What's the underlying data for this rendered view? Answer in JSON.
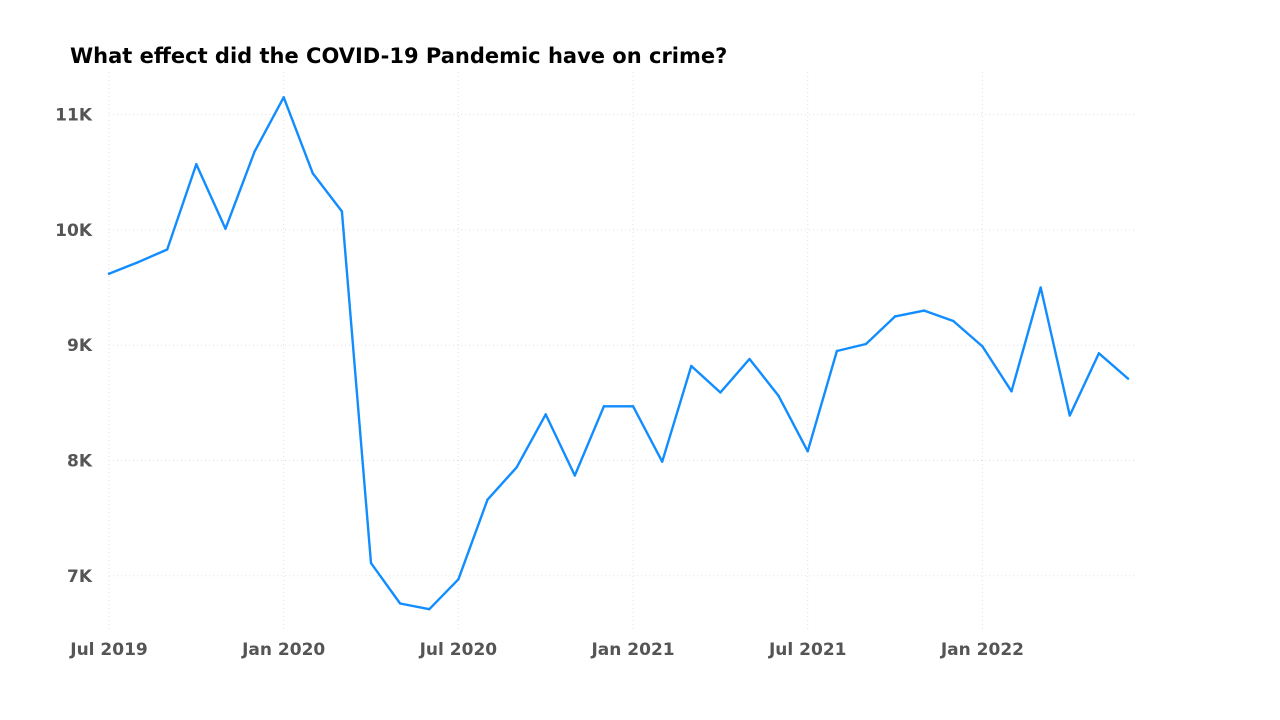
{
  "chart_data": {
    "type": "line",
    "title": "What effect did the COVID-19 Pandemic have on crime?",
    "xlabel": "",
    "ylabel": "",
    "x": [
      "2019-07",
      "2019-08",
      "2019-09",
      "2019-10",
      "2019-11",
      "2019-12",
      "2020-01",
      "2020-02",
      "2020-03",
      "2020-04",
      "2020-05",
      "2020-06",
      "2020-07",
      "2020-08",
      "2020-09",
      "2020-10",
      "2020-11",
      "2020-12",
      "2021-01",
      "2021-02",
      "2021-03",
      "2021-04",
      "2021-05",
      "2021-06",
      "2021-07",
      "2021-08",
      "2021-09",
      "2021-10",
      "2021-11",
      "2021-12",
      "2022-01",
      "2022-02",
      "2022-03",
      "2022-04",
      "2022-05",
      "2022-06"
    ],
    "series": [
      {
        "values": [
          9620,
          9720,
          9830,
          10570,
          10010,
          10680,
          11150,
          10490,
          10160,
          7110,
          6760,
          6710,
          6970,
          7660,
          7940,
          8400,
          7870,
          8470,
          8470,
          7990,
          8820,
          8590,
          8880,
          8560,
          8080,
          8950,
          9010,
          9250,
          9300,
          9210,
          8990,
          8600,
          9500,
          8390,
          8930,
          8710
        ]
      }
    ],
    "x_ticks": [
      {
        "x": "2019-07",
        "label": "Jul 2019"
      },
      {
        "x": "2020-01",
        "label": "Jan 2020"
      },
      {
        "x": "2020-07",
        "label": "Jul 2020"
      },
      {
        "x": "2021-01",
        "label": "Jan 2021"
      },
      {
        "x": "2021-07",
        "label": "Jul 2021"
      },
      {
        "x": "2022-01",
        "label": "Jan 2022"
      }
    ],
    "y_ticks": [
      {
        "value": 7000,
        "label": "7K"
      },
      {
        "value": 8000,
        "label": "8K"
      },
      {
        "value": 9000,
        "label": "9K"
      },
      {
        "value": 10000,
        "label": "10K"
      },
      {
        "value": 11000,
        "label": "11K"
      }
    ],
    "ylim": [
      6530,
      11300
    ],
    "grid": true,
    "line_color": "#118DFF",
    "grid_color": "#E0E0E0"
  }
}
